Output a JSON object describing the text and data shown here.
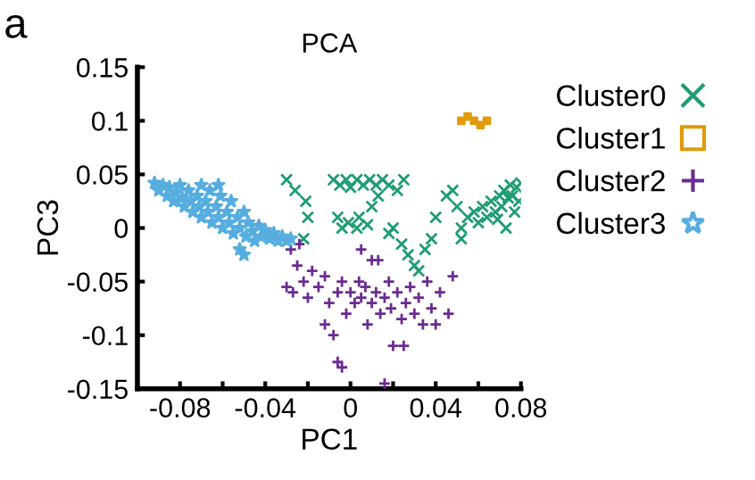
{
  "chart_data": {
    "type": "scatter",
    "title": "PCA",
    "xlabel": "PC1",
    "ylabel": "PC3",
    "annotations": [
      "a"
    ],
    "xlim": [
      -0.1,
      0.08
    ],
    "ylim": [
      -0.15,
      0.15
    ],
    "xticks": [
      {
        "value": -0.1,
        "label": null
      },
      -0.08,
      {
        "value": -0.06,
        "label": null
      },
      -0.04,
      {
        "value": -0.02,
        "label": null
      },
      0,
      {
        "value": 0.02,
        "label": null
      },
      0.04,
      {
        "value": 0.06,
        "label": null
      },
      0.08
    ],
    "yticks": [
      -0.15,
      -0.1,
      -0.05,
      0,
      0.05,
      0.1,
      0.15
    ],
    "grid": false,
    "legend": "right",
    "series": [
      {
        "name": "Cluster0",
        "color": "#1e9c74",
        "marker": "cross",
        "x": [
          -0.03,
          -0.026,
          -0.021,
          -0.02,
          -0.022,
          -0.008,
          -0.005,
          -0.002,
          0.0,
          0.003,
          0.006,
          0.009,
          0.012,
          0.015,
          0.018,
          0.022,
          0.025,
          -0.006,
          -0.004,
          -0.001,
          0.003,
          0.004,
          0.008,
          0.01,
          0.013,
          0.018,
          0.02,
          0.024,
          0.027,
          0.03,
          0.032,
          0.035,
          0.038,
          0.04,
          0.045,
          0.048,
          0.05,
          0.052,
          0.055,
          0.058,
          0.06,
          0.062,
          0.064,
          0.066,
          0.068,
          0.07,
          0.071,
          0.072,
          0.074,
          0.075,
          0.076,
          0.078,
          0.079,
          0.08,
          0.073,
          0.077,
          0.069,
          0.052
        ],
        "values": [
          0.045,
          0.035,
          0.025,
          0.01,
          -0.01,
          0.045,
          0.04,
          0.045,
          0.038,
          0.045,
          0.04,
          0.045,
          0.04,
          0.045,
          0.04,
          0.035,
          0.045,
          0.01,
          0.0,
          0.005,
          0.0,
          0.01,
          0.003,
          0.02,
          0.03,
          -0.005,
          0.0,
          -0.015,
          -0.025,
          -0.035,
          -0.04,
          -0.02,
          -0.01,
          0.01,
          0.03,
          0.035,
          0.02,
          0.0,
          0.01,
          0.015,
          0.005,
          0.02,
          0.01,
          0.025,
          0.015,
          0.03,
          0.02,
          0.035,
          0.028,
          0.04,
          0.03,
          0.038,
          0.025,
          0.042,
          0.0,
          0.015,
          0.008,
          -0.01
        ]
      },
      {
        "name": "Cluster1",
        "color": "#e09a0a",
        "marker": "square",
        "x": [
          0.052,
          0.058,
          0.064,
          0.055,
          0.061
        ],
        "values": [
          0.1,
          0.1,
          0.1,
          0.104,
          0.096
        ]
      },
      {
        "name": "Cluster2",
        "color": "#6a2c91",
        "marker": "plus",
        "x": [
          -0.024,
          -0.028,
          -0.025,
          -0.03,
          -0.027,
          -0.022,
          -0.02,
          -0.018,
          -0.015,
          -0.012,
          -0.01,
          -0.012,
          -0.008,
          -0.006,
          -0.004,
          -0.002,
          0.0,
          0.002,
          0.004,
          0.005,
          0.007,
          0.008,
          0.01,
          0.012,
          0.013,
          0.014,
          0.016,
          0.018,
          0.019,
          0.02,
          0.022,
          0.024,
          0.026,
          0.028,
          0.03,
          0.032,
          0.034,
          0.036,
          0.038,
          0.04,
          0.042,
          0.046,
          0.048,
          -0.006,
          -0.004,
          0.016,
          0.025,
          0.005,
          0.01
        ],
        "values": [
          -0.015,
          -0.02,
          -0.035,
          -0.055,
          -0.06,
          -0.05,
          -0.065,
          -0.04,
          -0.055,
          -0.045,
          -0.07,
          -0.09,
          -0.1,
          -0.06,
          -0.05,
          -0.08,
          -0.06,
          -0.07,
          -0.05,
          -0.065,
          -0.055,
          -0.09,
          -0.07,
          -0.06,
          -0.03,
          -0.08,
          -0.065,
          -0.05,
          -0.075,
          -0.11,
          -0.06,
          -0.085,
          -0.07,
          -0.055,
          -0.08,
          -0.065,
          -0.09,
          -0.05,
          -0.075,
          -0.09,
          -0.06,
          -0.08,
          -0.045,
          -0.125,
          -0.13,
          -0.145,
          -0.11,
          -0.02,
          -0.03
        ]
      },
      {
        "name": "Cluster3",
        "color": "#56addf",
        "marker": "star",
        "x": [
          -0.092,
          -0.09,
          -0.088,
          -0.086,
          -0.085,
          -0.083,
          -0.082,
          -0.08,
          -0.079,
          -0.078,
          -0.076,
          -0.075,
          -0.074,
          -0.072,
          -0.071,
          -0.07,
          -0.068,
          -0.067,
          -0.066,
          -0.065,
          -0.063,
          -0.062,
          -0.061,
          -0.06,
          -0.058,
          -0.057,
          -0.056,
          -0.055,
          -0.053,
          -0.052,
          -0.05,
          -0.049,
          -0.048,
          -0.046,
          -0.045,
          -0.043,
          -0.042,
          -0.04,
          -0.038,
          -0.036,
          -0.034,
          -0.032,
          -0.03,
          -0.028,
          -0.05,
          -0.052,
          -0.07,
          -0.062
        ],
        "values": [
          0.042,
          0.035,
          0.04,
          0.03,
          0.038,
          0.025,
          0.033,
          0.04,
          0.028,
          0.02,
          0.035,
          0.025,
          0.015,
          0.03,
          0.02,
          0.01,
          0.025,
          0.015,
          0.035,
          0.005,
          0.02,
          0.01,
          0.03,
          0.0,
          0.015,
          0.005,
          0.025,
          -0.005,
          0.01,
          0.0,
          0.015,
          -0.008,
          0.005,
          -0.003,
          -0.012,
          0.002,
          -0.008,
          -0.002,
          -0.01,
          -0.005,
          -0.012,
          -0.008,
          -0.012,
          -0.01,
          -0.025,
          -0.02,
          0.04,
          0.04
        ]
      }
    ]
  }
}
